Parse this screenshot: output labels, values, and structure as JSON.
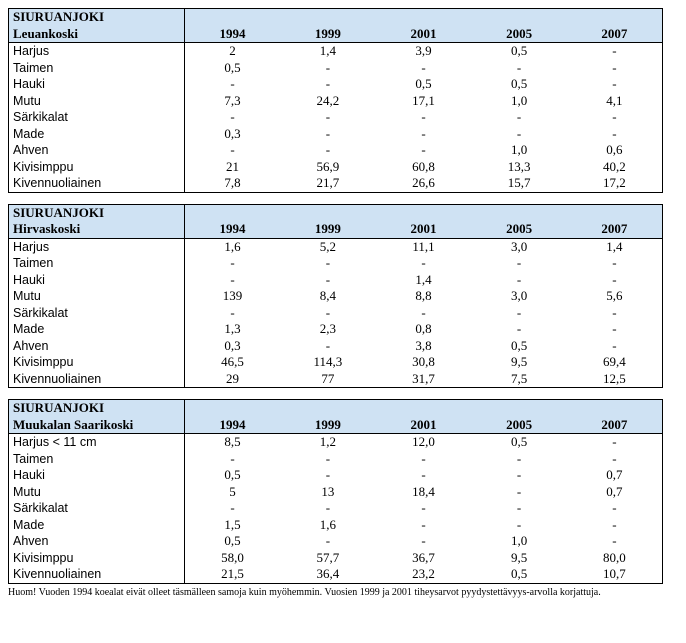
{
  "years": [
    "1994",
    "1999",
    "2001",
    "2005",
    "2007"
  ],
  "tables": [
    {
      "river": "SIURUANJOKI",
      "location": "Leuankoski",
      "rows": [
        {
          "species": "Harjus",
          "values": [
            "2",
            "1,4",
            "3,9",
            "0,5",
            "-"
          ]
        },
        {
          "species": "Taimen",
          "values": [
            "0,5",
            "-",
            "-",
            "-",
            "-"
          ]
        },
        {
          "species": "Hauki",
          "values": [
            "-",
            "-",
            "0,5",
            "0,5",
            "-"
          ]
        },
        {
          "species": "Mutu",
          "values": [
            "7,3",
            "24,2",
            "17,1",
            "1,0",
            "4,1"
          ]
        },
        {
          "species": "Särkikalat",
          "values": [
            "-",
            "-",
            "-",
            "-",
            "-"
          ]
        },
        {
          "species": "Made",
          "values": [
            "0,3",
            "-",
            "-",
            "-",
            "-"
          ]
        },
        {
          "species": "Ahven",
          "values": [
            "-",
            "-",
            "-",
            "1,0",
            "0,6"
          ]
        },
        {
          "species": "Kivisimppu",
          "values": [
            "21",
            "56,9",
            "60,8",
            "13,3",
            "40,2"
          ]
        },
        {
          "species": "Kivennuoliainen",
          "values": [
            "7,8",
            "21,7",
            "26,6",
            "15,7",
            "17,2"
          ]
        }
      ]
    },
    {
      "river": "SIURUANJOKI",
      "location": "Hirvaskoski",
      "rows": [
        {
          "species": "Harjus",
          "values": [
            "1,6",
            "5,2",
            "11,1",
            "3,0",
            "1,4"
          ]
        },
        {
          "species": "Taimen",
          "values": [
            "-",
            "-",
            "-",
            "-",
            "-"
          ]
        },
        {
          "species": "Hauki",
          "values": [
            "-",
            "-",
            "1,4",
            "-",
            "-"
          ]
        },
        {
          "species": "Mutu",
          "values": [
            "139",
            "8,4",
            "8,8",
            "3,0",
            "5,6"
          ]
        },
        {
          "species": "Särkikalat",
          "values": [
            "-",
            "-",
            "-",
            "-",
            "-"
          ]
        },
        {
          "species": "Made",
          "values": [
            "1,3",
            "2,3",
            "0,8",
            "-",
            "-"
          ]
        },
        {
          "species": "Ahven",
          "values": [
            "0,3",
            "-",
            "3,8",
            "0,5",
            "-"
          ]
        },
        {
          "species": "Kivisimppu",
          "values": [
            "46,5",
            "114,3",
            "30,8",
            "9,5",
            "69,4"
          ]
        },
        {
          "species": "Kivennuoliainen",
          "values": [
            "29",
            "77",
            "31,7",
            "7,5",
            "12,5"
          ]
        }
      ]
    },
    {
      "river": "SIURUANJOKI",
      "location": "Muukalan Saarikoski",
      "rows": [
        {
          "species": "Harjus < 11 cm",
          "values": [
            "8,5",
            "1,2",
            "12,0",
            "0,5",
            "-"
          ]
        },
        {
          "species": "Taimen",
          "values": [
            "-",
            "-",
            "-",
            "-",
            "-"
          ]
        },
        {
          "species": "Hauki",
          "values": [
            "0,5",
            "-",
            "-",
            "-",
            "0,7"
          ]
        },
        {
          "species": "Mutu",
          "values": [
            "5",
            "13",
            "18,4",
            "-",
            "0,7"
          ]
        },
        {
          "species": "Särkikalat",
          "values": [
            "-",
            "-",
            "-",
            "-",
            "-"
          ]
        },
        {
          "species": "Made",
          "values": [
            "1,5",
            "1,6",
            "-",
            "-",
            "-"
          ]
        },
        {
          "species": "Ahven",
          "values": [
            "0,5",
            "-",
            "-",
            "1,0",
            "-"
          ]
        },
        {
          "species": "Kivisimppu",
          "values": [
            "58,0",
            "57,7",
            "36,7",
            "9,5",
            "80,0"
          ]
        },
        {
          "species": "Kivennuoliainen",
          "values": [
            "21,5",
            "36,4",
            "23,2",
            "0,5",
            "10,7"
          ]
        }
      ]
    }
  ],
  "note": "Huom! Vuoden 1994 koealat eivät olleet täsmälleen samoja kuin myöhemmin. Vuosien 1999 ja 2001 tiheysarvot pyydystettävyys-arvolla korjattuja."
}
